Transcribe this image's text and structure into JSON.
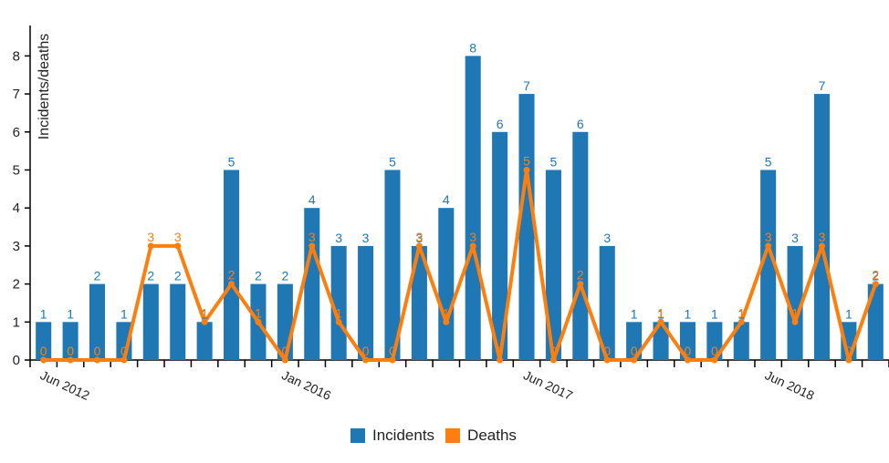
{
  "chart_data": {
    "type": "bar",
    "ylabel": "Incidents/deaths",
    "ylim": [
      0,
      8.8
    ],
    "yticks": [
      0,
      1,
      2,
      3,
      4,
      5,
      6,
      7,
      8
    ],
    "x_tick_labels": [
      {
        "index": 0,
        "label": "Jun 2012"
      },
      {
        "index": 9,
        "label": "Jan 2016"
      },
      {
        "index": 18,
        "label": "Jun 2017"
      },
      {
        "index": 27,
        "label": "Jun 2018"
      }
    ],
    "series": [
      {
        "name": "Incidents",
        "kind": "bar",
        "color": "#1f77b4",
        "values": [
          1,
          1,
          2,
          1,
          2,
          2,
          1,
          5,
          2,
          2,
          4,
          3,
          3,
          5,
          3,
          4,
          8,
          6,
          7,
          5,
          6,
          3,
          1,
          1,
          1,
          1,
          1,
          5,
          3,
          7,
          1,
          2
        ]
      },
      {
        "name": "Deaths",
        "kind": "line",
        "color": "#ff7f0e",
        "values": [
          0,
          0,
          0,
          0,
          3,
          3,
          1,
          2,
          1,
          0,
          3,
          1,
          0,
          0,
          3,
          1,
          3,
          0,
          5,
          0,
          2,
          0,
          0,
          1,
          0,
          0,
          1,
          3,
          1,
          3,
          0,
          2
        ]
      }
    ]
  }
}
